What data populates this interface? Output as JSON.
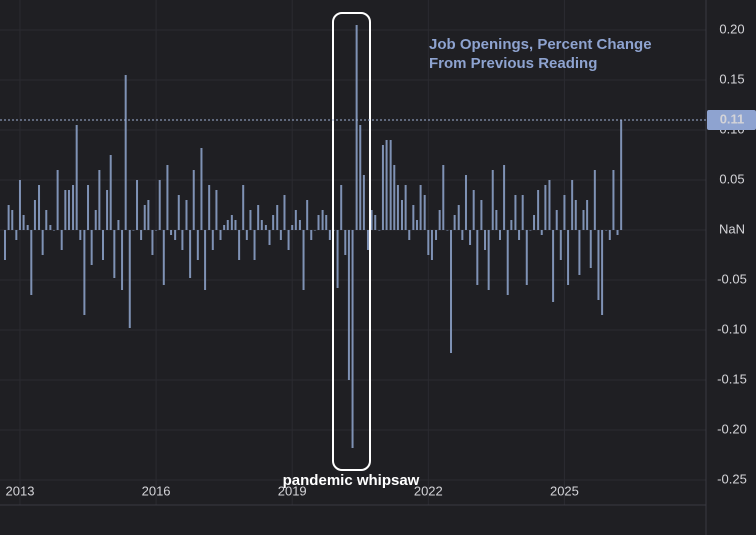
{
  "chart_data": {
    "type": "bar",
    "title": [
      "Job Openings, Percent Change",
      "From Previous Reading"
    ],
    "annotation": "pandemic whipsaw",
    "color": "#7f92b5",
    "grid": true,
    "last_value": 0.11,
    "xlim": [
      2012.56,
      2028.12
    ],
    "xticks": [
      2013,
      2016,
      2019,
      2022,
      2025
    ],
    "ylim": [
      -0.275,
      0.23
    ],
    "yticks": [
      {
        "value": 0.2,
        "label": "0.20"
      },
      {
        "value": 0.15,
        "label": "0.15"
      },
      {
        "value": 0.1,
        "label": "0.10"
      },
      {
        "value": 0.05,
        "label": "0.05"
      },
      {
        "value": 0,
        "label": "NaN"
      },
      {
        "value": -0.05,
        "label": "-0.05"
      },
      {
        "value": -0.1,
        "label": "-0.10"
      },
      {
        "value": -0.15,
        "label": "-0.15"
      },
      {
        "value": -0.2,
        "label": "-0.20"
      },
      {
        "value": -0.25,
        "label": "-0.25"
      }
    ],
    "x": [
      2012.67,
      2012.75,
      2012.83,
      2012.92,
      2013.0,
      2013.08,
      2013.17,
      2013.25,
      2013.33,
      2013.42,
      2013.5,
      2013.58,
      2013.67,
      2013.75,
      2013.83,
      2013.92,
      2014.0,
      2014.08,
      2014.17,
      2014.25,
      2014.33,
      2014.42,
      2014.5,
      2014.58,
      2014.67,
      2014.75,
      2014.83,
      2014.92,
      2015.0,
      2015.08,
      2015.17,
      2015.25,
      2015.33,
      2015.42,
      2015.5,
      2015.58,
      2015.67,
      2015.75,
      2015.83,
      2015.92,
      2016.0,
      2016.08,
      2016.17,
      2016.25,
      2016.33,
      2016.42,
      2016.5,
      2016.58,
      2016.67,
      2016.75,
      2016.83,
      2016.92,
      2017.0,
      2017.08,
      2017.17,
      2017.25,
      2017.33,
      2017.42,
      2017.5,
      2017.58,
      2017.67,
      2017.75,
      2017.83,
      2017.92,
      2018.0,
      2018.08,
      2018.17,
      2018.25,
      2018.33,
      2018.42,
      2018.5,
      2018.58,
      2018.67,
      2018.75,
      2018.83,
      2018.92,
      2019.0,
      2019.08,
      2019.17,
      2019.25,
      2019.33,
      2019.42,
      2019.5,
      2019.58,
      2019.67,
      2019.75,
      2019.83,
      2019.92,
      2020.0,
      2020.08,
      2020.17,
      2020.25,
      2020.33,
      2020.42,
      2020.5,
      2020.58,
      2020.67,
      2020.75,
      2020.83,
      2020.92,
      2021.0,
      2021.08,
      2021.17,
      2021.25,
      2021.33,
      2021.42,
      2021.5,
      2021.58,
      2021.67,
      2021.75,
      2021.83,
      2021.92,
      2022.0,
      2022.08,
      2022.17,
      2022.25,
      2022.33,
      2022.42,
      2022.5,
      2022.58,
      2022.67,
      2022.75,
      2022.83,
      2022.92,
      2023.0,
      2023.08,
      2023.17,
      2023.25,
      2023.33,
      2023.42,
      2023.5,
      2023.58,
      2023.67,
      2023.75,
      2023.83,
      2023.92,
      2024.0,
      2024.08,
      2024.17,
      2024.25,
      2024.33,
      2024.42,
      2024.5,
      2024.58,
      2024.67,
      2024.75,
      2024.83,
      2024.92,
      2025.0,
      2025.08,
      2025.17,
      2025.25,
      2025.33,
      2025.42,
      2025.5,
      2025.58,
      2025.67,
      2025.75,
      2025.83,
      2025.92,
      2026.0,
      2026.08,
      2026.17,
      2026.25
    ],
    "values": [
      -0.03,
      0.025,
      0.02,
      -0.01,
      0.05,
      0.015,
      0.005,
      -0.065,
      0.03,
      0.045,
      -0.025,
      0.02,
      0.005,
      0.0,
      0.06,
      -0.02,
      0.04,
      0.04,
      0.045,
      0.105,
      -0.01,
      -0.085,
      0.045,
      -0.035,
      0.02,
      0.06,
      -0.03,
      0.04,
      0.075,
      -0.048,
      0.01,
      -0.06,
      0.155,
      -0.098,
      0.0,
      0.05,
      -0.01,
      0.025,
      0.03,
      -0.025,
      0.0,
      0.05,
      -0.055,
      0.065,
      -0.005,
      -0.01,
      0.035,
      -0.02,
      0.03,
      -0.048,
      0.06,
      -0.03,
      0.082,
      -0.06,
      0.045,
      -0.02,
      0.04,
      -0.01,
      0.005,
      0.01,
      0.015,
      0.01,
      -0.03,
      0.045,
      -0.01,
      0.02,
      -0.03,
      0.025,
      0.01,
      0.005,
      -0.015,
      0.015,
      0.025,
      -0.01,
      0.035,
      -0.02,
      0.005,
      0.02,
      0.01,
      -0.06,
      0.03,
      -0.01,
      0.0,
      0.015,
      0.02,
      0.015,
      -0.01,
      0.0,
      -0.058,
      0.045,
      -0.025,
      -0.15,
      -0.218,
      0.205,
      0.105,
      0.055,
      -0.02,
      0.02,
      0.015,
      0.0,
      0.085,
      0.09,
      0.09,
      0.065,
      0.045,
      0.03,
      0.045,
      -0.01,
      0.025,
      0.01,
      0.045,
      0.035,
      -0.025,
      -0.03,
      -0.01,
      0.02,
      0.065,
      0.0,
      -0.123,
      0.015,
      0.025,
      -0.01,
      0.055,
      -0.015,
      0.04,
      -0.055,
      0.03,
      -0.02,
      -0.06,
      0.06,
      0.02,
      -0.01,
      0.065,
      -0.065,
      0.01,
      0.035,
      -0.01,
      0.035,
      -0.055,
      0.0,
      0.015,
      0.04,
      -0.005,
      0.045,
      0.05,
      -0.072,
      0.02,
      -0.03,
      0.035,
      -0.055,
      0.05,
      0.03,
      -0.045,
      0.02,
      0.03,
      -0.038,
      0.06,
      -0.07,
      -0.085,
      0.0,
      -0.01,
      0.06,
      -0.005,
      0.11
    ]
  }
}
